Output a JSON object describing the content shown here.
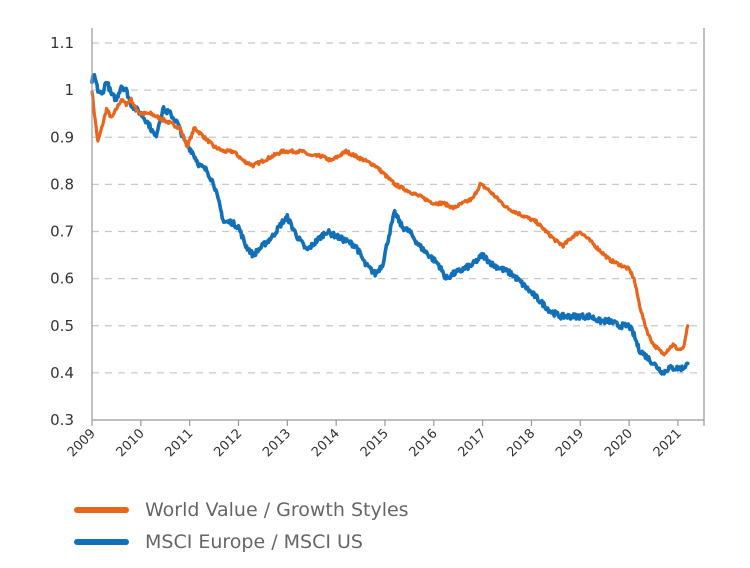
{
  "chart_data": {
    "type": "line",
    "title": "",
    "xlabel": "",
    "ylabel": "",
    "xlim": [
      2009,
      2021.4
    ],
    "ylim": [
      0.3,
      1.1
    ],
    "grid": true,
    "grid_style": "dashed-horizontal",
    "legend_position": "bottom-left",
    "y_ticks": [
      "1.1",
      "1",
      "0.9",
      "0.8",
      "0.7",
      "0.6",
      "0.5",
      "0.4",
      "0.3"
    ],
    "y_tick_values": [
      1.1,
      1.0,
      0.9,
      0.8,
      0.7,
      0.6,
      0.5,
      0.4,
      0.3
    ],
    "x_ticks": [
      "2009",
      "2010",
      "2011",
      "2012",
      "2013",
      "2014",
      "2015",
      "2016",
      "2017",
      "2018",
      "2019",
      "2020",
      "2021"
    ],
    "x_tick_values": [
      2009,
      2010,
      2011,
      2012,
      2013,
      2014,
      2015,
      2016,
      2017,
      2018,
      2019,
      2020,
      2021
    ],
    "series": [
      {
        "name": "World Value / Growth Styles",
        "color": "#e8661c",
        "x": [
          2009.0,
          2009.05,
          2009.12,
          2009.2,
          2009.3,
          2009.4,
          2009.5,
          2009.6,
          2009.7,
          2009.8,
          2009.9,
          2010.0,
          2010.2,
          2010.4,
          2010.6,
          2010.8,
          2010.95,
          2011.1,
          2011.3,
          2011.5,
          2011.7,
          2011.9,
          2012.1,
          2012.3,
          2012.5,
          2012.7,
          2012.9,
          2013.1,
          2013.3,
          2013.5,
          2013.7,
          2013.9,
          2014.05,
          2014.2,
          2014.4,
          2014.6,
          2014.8,
          2015.0,
          2015.2,
          2015.4,
          2015.6,
          2015.8,
          2016.0,
          2016.2,
          2016.4,
          2016.6,
          2016.8,
          2016.95,
          2017.1,
          2017.3,
          2017.5,
          2017.7,
          2017.9,
          2018.1,
          2018.3,
          2018.5,
          2018.65,
          2018.85,
          2019.0,
          2019.2,
          2019.4,
          2019.6,
          2019.8,
          2020.0,
          2020.1,
          2020.2,
          2020.3,
          2020.4,
          2020.5,
          2020.6,
          2020.7,
          2020.8,
          2020.9,
          2021.0,
          2021.1,
          2021.15,
          2021.2
        ],
        "y": [
          1.0,
          0.95,
          0.89,
          0.92,
          0.96,
          0.94,
          0.96,
          0.98,
          0.97,
          0.98,
          0.96,
          0.95,
          0.95,
          0.94,
          0.93,
          0.92,
          0.88,
          0.92,
          0.9,
          0.88,
          0.87,
          0.87,
          0.85,
          0.84,
          0.85,
          0.86,
          0.87,
          0.87,
          0.87,
          0.86,
          0.86,
          0.85,
          0.86,
          0.87,
          0.86,
          0.85,
          0.84,
          0.82,
          0.8,
          0.79,
          0.78,
          0.77,
          0.76,
          0.76,
          0.75,
          0.76,
          0.77,
          0.8,
          0.79,
          0.77,
          0.75,
          0.74,
          0.73,
          0.72,
          0.7,
          0.68,
          0.67,
          0.69,
          0.7,
          0.68,
          0.66,
          0.64,
          0.63,
          0.62,
          0.6,
          0.55,
          0.51,
          0.48,
          0.46,
          0.45,
          0.44,
          0.45,
          0.46,
          0.45,
          0.45,
          0.47,
          0.5
        ]
      },
      {
        "name": "MSCI Europe / MSCI US",
        "color": "#1170b8",
        "x": [
          2009.0,
          2009.05,
          2009.12,
          2009.2,
          2009.3,
          2009.4,
          2009.5,
          2009.6,
          2009.7,
          2009.8,
          2009.9,
          2010.0,
          2010.15,
          2010.3,
          2010.45,
          2010.6,
          2010.75,
          2010.9,
          2011.05,
          2011.2,
          2011.35,
          2011.5,
          2011.6,
          2011.7,
          2011.85,
          2012.0,
          2012.15,
          2012.3,
          2012.5,
          2012.7,
          2012.9,
          2013.0,
          2013.2,
          2013.4,
          2013.6,
          2013.8,
          2014.0,
          2014.2,
          2014.4,
          2014.6,
          2014.8,
          2014.95,
          2015.1,
          2015.2,
          2015.35,
          2015.5,
          2015.7,
          2015.9,
          2016.1,
          2016.25,
          2016.4,
          2016.6,
          2016.8,
          2017.0,
          2017.2,
          2017.4,
          2017.6,
          2017.8,
          2018.0,
          2018.2,
          2018.4,
          2018.6,
          2018.8,
          2019.0,
          2019.2,
          2019.4,
          2019.6,
          2019.8,
          2020.0,
          2020.1,
          2020.2,
          2020.3,
          2020.4,
          2020.5,
          2020.6,
          2020.7,
          2020.8,
          2020.9,
          2021.0,
          2021.1,
          2021.2
        ],
        "y": [
          1.02,
          1.03,
          1.0,
          0.99,
          1.02,
          0.99,
          0.98,
          1.01,
          1.0,
          0.97,
          0.96,
          0.95,
          0.93,
          0.9,
          0.96,
          0.95,
          0.93,
          0.89,
          0.87,
          0.84,
          0.83,
          0.8,
          0.76,
          0.72,
          0.72,
          0.71,
          0.67,
          0.65,
          0.67,
          0.69,
          0.72,
          0.73,
          0.69,
          0.66,
          0.68,
          0.7,
          0.69,
          0.68,
          0.67,
          0.63,
          0.61,
          0.63,
          0.7,
          0.74,
          0.71,
          0.7,
          0.67,
          0.65,
          0.63,
          0.6,
          0.61,
          0.62,
          0.63,
          0.65,
          0.63,
          0.62,
          0.61,
          0.59,
          0.57,
          0.55,
          0.53,
          0.52,
          0.52,
          0.52,
          0.52,
          0.51,
          0.51,
          0.5,
          0.5,
          0.48,
          0.45,
          0.44,
          0.43,
          0.42,
          0.41,
          0.4,
          0.41,
          0.41,
          0.41,
          0.41,
          0.42
        ]
      }
    ]
  },
  "legend": {
    "items": [
      {
        "label": "World Value / Growth Styles",
        "color": "#e8661c"
      },
      {
        "label": "MSCI Europe / MSCI US",
        "color": "#1170b8"
      }
    ]
  }
}
